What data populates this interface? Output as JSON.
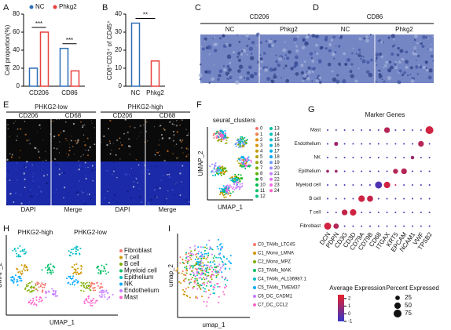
{
  "panel_labels": [
    "A",
    "B",
    "C",
    "D",
    "E",
    "F",
    "G",
    "H",
    "I"
  ],
  "chart_data": [
    {
      "type": "bar",
      "ylabel": "Cell proportion(%)",
      "categories": [
        "CD206",
        "CD86"
      ],
      "series": [
        {
          "name": "NC",
          "color": "#2e6fb7",
          "values": [
            20,
            42
          ]
        },
        {
          "name": "Phkg2",
          "color": "#e8413c",
          "values": [
            60,
            17
          ]
        }
      ],
      "ylim": [
        0,
        80
      ],
      "yticks": [
        0,
        20,
        40,
        60,
        80
      ],
      "significance": [
        "***",
        "***"
      ]
    },
    {
      "type": "bar",
      "ylabel": "CD8⁺CD3⁺ of CD45⁺",
      "categories": [
        "NC",
        "Phkg2"
      ],
      "values": [
        35,
        14
      ],
      "colors": [
        "#2e6fb7",
        "#e8413c"
      ],
      "ylim": [
        0,
        40
      ],
      "yticks": [
        0,
        10,
        20,
        30,
        40
      ],
      "significance": [
        "**"
      ]
    },
    {
      "type": "dot",
      "title": "Marker Genes",
      "rows": [
        "Mast",
        "Endothelium",
        "NK",
        "Epithelium",
        "Myeloid cell",
        "B cell",
        "T cell",
        "Fibroblast"
      ],
      "columns": [
        "DCN",
        "PDPN",
        "CD3G",
        "CD3D",
        "CD79A",
        "CD79B",
        "CD68",
        "ITGAX",
        "KRT5",
        "EPCAM",
        "NCAM1",
        "VWF",
        "TPSB2"
      ],
      "percent": [
        [
          3,
          3,
          3,
          3,
          3,
          3,
          3,
          40,
          3,
          3,
          3,
          3,
          75
        ],
        [
          3,
          20,
          3,
          3,
          3,
          3,
          3,
          3,
          3,
          3,
          3,
          40,
          3
        ],
        [
          3,
          3,
          3,
          3,
          3,
          3,
          3,
          3,
          3,
          3,
          15,
          3,
          3
        ],
        [
          10,
          10,
          3,
          3,
          3,
          3,
          3,
          3,
          30,
          40,
          3,
          3,
          3
        ],
        [
          3,
          3,
          3,
          3,
          3,
          3,
          60,
          50,
          3,
          3,
          3,
          3,
          3
        ],
        [
          3,
          3,
          3,
          3,
          50,
          45,
          3,
          3,
          3,
          3,
          3,
          3,
          3
        ],
        [
          3,
          3,
          40,
          50,
          3,
          3,
          3,
          3,
          3,
          3,
          3,
          3,
          3
        ],
        [
          60,
          35,
          3,
          3,
          3,
          3,
          3,
          3,
          3,
          3,
          3,
          3,
          3
        ]
      ],
      "expression": [
        [
          -0.5,
          -0.5,
          -0.5,
          -0.5,
          -0.5,
          -0.5,
          -0.5,
          1.5,
          -0.5,
          -0.5,
          -0.5,
          -0.5,
          2
        ],
        [
          -0.5,
          1,
          -0.5,
          -0.5,
          -0.5,
          -0.5,
          -0.5,
          -0.5,
          -0.5,
          -0.5,
          -0.5,
          1.5,
          -0.5
        ],
        [
          -0.5,
          -0.5,
          -0.5,
          -0.5,
          -0.5,
          -0.5,
          -0.5,
          -0.5,
          -0.5,
          -0.5,
          1,
          -0.5,
          -0.5
        ],
        [
          1,
          1,
          -0.5,
          -0.5,
          -0.5,
          -0.5,
          -0.5,
          -0.5,
          1.5,
          1.5,
          -0.5,
          -0.5,
          -0.5
        ],
        [
          -0.5,
          -0.5,
          -0.5,
          -0.5,
          -0.5,
          -0.5,
          -0.5,
          2,
          1.8,
          -0.5,
          -0.5,
          -0.5,
          -0.5
        ],
        [
          -0.5,
          -0.5,
          -0.5,
          -0.5,
          2,
          1.8,
          -0.5,
          -0.5,
          -0.5,
          -0.5,
          -0.5,
          -0.5,
          -0.5
        ],
        [
          -0.5,
          -0.5,
          1.8,
          2,
          -0.5,
          -0.5,
          -0.5,
          -0.5,
          -0.5,
          -0.5,
          -0.5,
          -0.5,
          -0.5
        ],
        [
          2,
          1.5,
          -0.5,
          -0.5,
          -0.5,
          -0.5,
          -0.5,
          -0.5,
          -0.5,
          -0.5,
          -0.5,
          -0.5,
          -0.5
        ]
      ],
      "color_legend_title": "Average Expression",
      "colorlim": [
        -1,
        2.5
      ],
      "color_ticks": [
        2,
        1,
        0,
        -1
      ],
      "colors": [
        "#3636c8",
        "#e8202a"
      ],
      "size_legend_title": "Percent Expressed",
      "size_ticks": [
        25,
        50,
        75
      ]
    }
  ],
  "ihc": [
    {
      "title": "CD206",
      "labels": [
        "NC",
        "Phkg2"
      ]
    },
    {
      "title": "CD86",
      "labels": [
        "NC",
        "Phkg2"
      ]
    }
  ],
  "immunofluorescence": {
    "titles": [
      "PHKG2-low",
      "PHKG2-high"
    ],
    "top_labels": [
      "CD206",
      "CD68"
    ],
    "bottom_labels": [
      "DAPI",
      "Merge"
    ]
  },
  "umap_clusters": {
    "title": "seurat_clusters",
    "xlabel": "UMAP_1",
    "ylabel": "UMAP_2",
    "clusters": [
      0,
      1,
      2,
      3,
      4,
      5,
      6,
      7,
      8,
      9,
      10,
      11,
      12,
      13,
      14,
      15,
      16,
      17,
      18,
      19,
      20,
      21,
      22,
      23,
      24
    ],
    "colors": [
      "#f8766d",
      "#ef7f47",
      "#e38900",
      "#d49200",
      "#c49a00",
      "#b0a100",
      "#99a800",
      "#7cae00",
      "#53b400",
      "#00b81f",
      "#00bb4e",
      "#00be6c",
      "#00c087",
      "#00c19f",
      "#00bfb7",
      "#00bccc",
      "#00b7e0",
      "#00b0f0",
      "#00a7ff",
      "#619cff",
      "#9a8fff",
      "#c27fff",
      "#df70f8",
      "#f265e7",
      "#ff61c9"
    ]
  },
  "umap_celltypes": {
    "titles": [
      "PHKG2-high",
      "PHKG2-low"
    ],
    "xlabel": "UMAP_1",
    "ylabel": "UMAP_2",
    "legend": [
      {
        "name": "Fibroblast",
        "color": "#f8766d"
      },
      {
        "name": "T cell",
        "color": "#cd9600"
      },
      {
        "name": "B cell",
        "color": "#7cae00"
      },
      {
        "name": "Myeloid cell",
        "color": "#00be67"
      },
      {
        "name": "Epithelium",
        "color": "#00bfc4"
      },
      {
        "name": "NK",
        "color": "#00a9ff"
      },
      {
        "name": "Endothelium",
        "color": "#c77cff"
      },
      {
        "name": "Mast",
        "color": "#ff61cc"
      }
    ]
  },
  "umap_myeloid": {
    "xlabel": "umap_1",
    "ylabel": "umap_2",
    "legend": [
      {
        "name": "C0_TAMs_LTC4S",
        "color": "#f8766d"
      },
      {
        "name": "C1_Mono_LMNA",
        "color": "#cd9600"
      },
      {
        "name": "C2_Mono_MPZ",
        "color": "#7cae00"
      },
      {
        "name": "C3_TAMs_MAK",
        "color": "#00be67"
      },
      {
        "name": "C4_TAMs_AL136987.1",
        "color": "#00bfc4"
      },
      {
        "name": "C5_TAMs_TMEM37",
        "color": "#00a9ff"
      },
      {
        "name": "C6_DC_CADM1",
        "color": "#c77cff"
      },
      {
        "name": "C7_DC_CCL2",
        "color": "#ff61cc"
      }
    ]
  }
}
